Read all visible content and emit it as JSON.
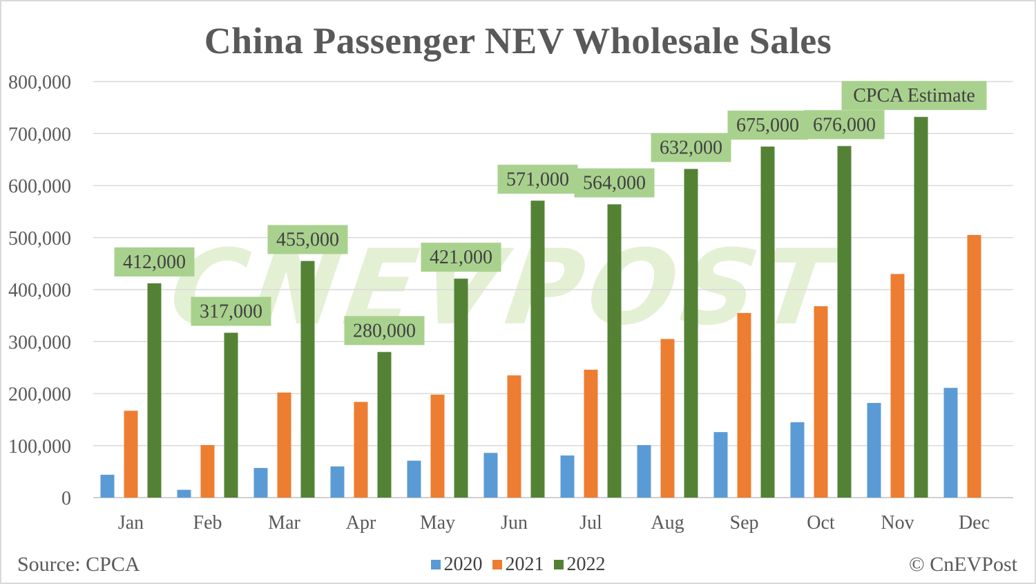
{
  "title": "China Passenger NEV Wholesale Sales",
  "source": "Source: CPCA",
  "copyright": "© CnEVPost",
  "watermark": "CNEVPOST",
  "colors": {
    "s2020": "#5b9bd5",
    "s2021": "#ed7d31",
    "s2022": "#548235",
    "label_bg": "#a9d18e",
    "grid": "#d9d9d9",
    "axis_text": "#595959"
  },
  "chart_data": {
    "type": "bar",
    "title": "China Passenger NEV Wholesale Sales",
    "categories": [
      "Jan",
      "Feb",
      "Mar",
      "Apr",
      "May",
      "Jun",
      "Jul",
      "Aug",
      "Sep",
      "Oct",
      "Nov",
      "Dec"
    ],
    "yticks": [
      "0",
      "100,000",
      "200,000",
      "300,000",
      "400,000",
      "500,000",
      "600,000",
      "700,000",
      "800,000"
    ],
    "ylim": [
      0,
      800000
    ],
    "grid": true,
    "legend_position": "bottom",
    "series": [
      {
        "name": "2020",
        "color": "#5b9bd5",
        "values": [
          44000,
          15000,
          57000,
          60000,
          71000,
          86000,
          81000,
          101000,
          126000,
          145000,
          182000,
          211000
        ]
      },
      {
        "name": "2021",
        "color": "#ed7d31",
        "values": [
          167000,
          101000,
          202000,
          184000,
          198000,
          235000,
          246000,
          305000,
          355000,
          368000,
          430000,
          505000
        ]
      },
      {
        "name": "2022",
        "color": "#548235",
        "values": [
          412000,
          317000,
          455000,
          280000,
          421000,
          571000,
          564000,
          632000,
          675000,
          676000,
          732000,
          null
        ]
      }
    ],
    "data_labels": [
      "412,000",
      "317,000",
      "455,000",
      "280,000",
      "421,000",
      "571,000",
      "564,000",
      "632,000",
      "675,000",
      "676,000",
      "CPCA Estimate"
    ]
  }
}
